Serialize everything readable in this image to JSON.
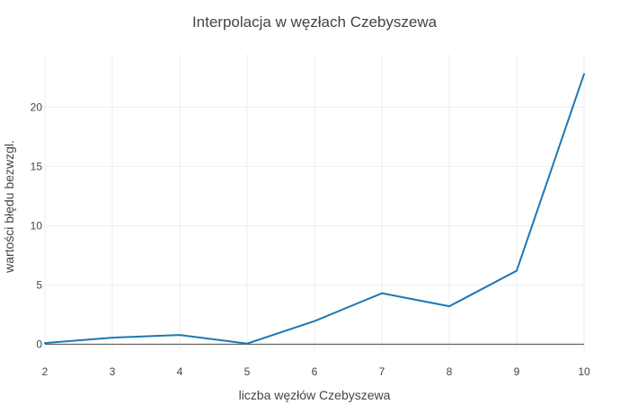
{
  "chart_data": {
    "type": "line",
    "title": "Interpolacja w węzłach Czebyszewa",
    "xlabel": "liczba węzłów Czebyszewa",
    "ylabel": "wartości błędu bezwzgl.",
    "x": [
      2,
      3,
      4,
      5,
      6,
      7,
      8,
      9,
      10
    ],
    "xlim": [
      2,
      10
    ],
    "ylim": [
      -0.5,
      24.5
    ],
    "xticks": [
      "2",
      "3",
      "4",
      "5",
      "6",
      "7",
      "8",
      "9",
      "10"
    ],
    "yticks": [
      "0",
      "5",
      "10",
      "15",
      "20"
    ],
    "grid": true,
    "series": [
      {
        "values": [
          0.1,
          0.55,
          0.78,
          0.05,
          1.95,
          4.3,
          3.2,
          6.2,
          22.8
        ],
        "color": "#1f77b4"
      }
    ]
  }
}
